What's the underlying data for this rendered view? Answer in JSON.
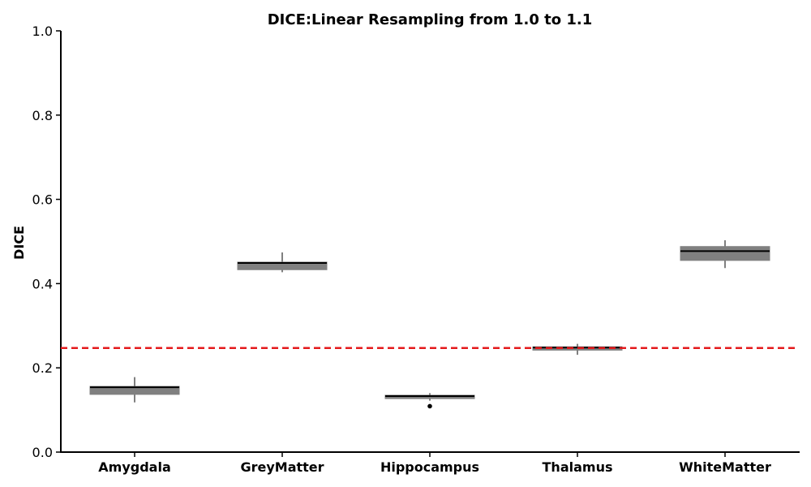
{
  "chart_data": {
    "type": "boxplot",
    "title": "DICE:Linear Resampling from 1.0 to 1.1",
    "xlabel": "",
    "ylabel": "DICE",
    "ylim": [
      0.0,
      1.0
    ],
    "yticks": [
      "0.0",
      "0.2",
      "0.4",
      "0.6",
      "0.8",
      "1.0"
    ],
    "grid": false,
    "categories": [
      "Amygdala",
      "GreyMatter",
      "Hippocampus",
      "Thalamus",
      "WhiteMatter"
    ],
    "boxes": [
      {
        "category": "Amygdala",
        "whisker_low": 0.118,
        "q1": 0.137,
        "median": 0.154,
        "q3": 0.156,
        "whisker_high": 0.178,
        "outliers": []
      },
      {
        "category": "GreyMatter",
        "whisker_low": 0.427,
        "q1": 0.433,
        "median": 0.449,
        "q3": 0.451,
        "whisker_high": 0.474,
        "outliers": []
      },
      {
        "category": "Hippocampus",
        "whisker_low": 0.122,
        "q1": 0.127,
        "median": 0.133,
        "q3": 0.135,
        "whisker_high": 0.14,
        "outliers": [
          0.109
        ]
      },
      {
        "category": "Thalamus",
        "whisker_low": 0.231,
        "q1": 0.242,
        "median": 0.248,
        "q3": 0.25,
        "whisker_high": 0.257,
        "outliers": []
      },
      {
        "category": "WhiteMatter",
        "whisker_low": 0.437,
        "q1": 0.455,
        "median": 0.477,
        "q3": 0.488,
        "whisker_high": 0.503,
        "outliers": []
      }
    ],
    "reference_line": {
      "y": 0.247,
      "style": "dashed",
      "color": "#e41a1c"
    },
    "box_color": "#808080",
    "median_color": "#000000"
  }
}
